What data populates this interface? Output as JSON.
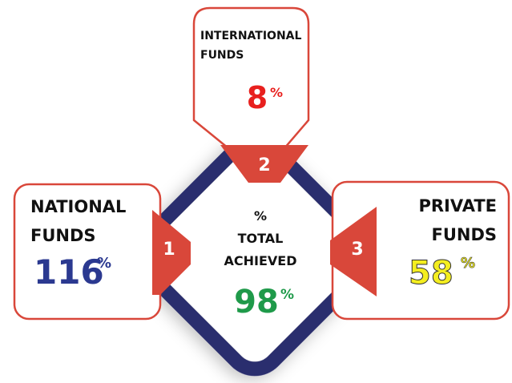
{
  "center": {
    "lines": [
      "%",
      "TOTAL",
      "ACHIEVED"
    ],
    "value": 98,
    "unit": "%"
  },
  "cards": [
    {
      "number": 1,
      "lines": [
        "NATIONAL",
        "FUNDS"
      ],
      "value": 116,
      "unit": "%"
    },
    {
      "number": 2,
      "lines": [
        "INTERNATIONAL",
        "FUNDS"
      ],
      "value": 8,
      "unit": "%"
    },
    {
      "number": 3,
      "lines": [
        "PRIVATE",
        "FUNDS"
      ],
      "value": 58,
      "unit": "%"
    }
  ]
}
